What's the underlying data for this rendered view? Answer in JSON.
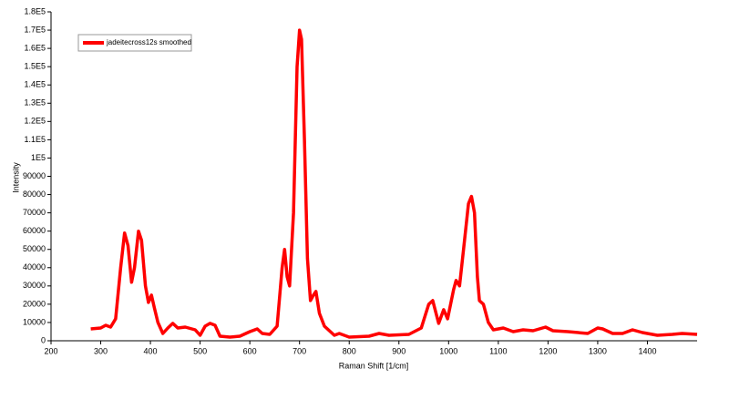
{
  "chart_data": {
    "type": "line",
    "x_label": "Raman Shift [1/cm]",
    "y_label": "Intensity",
    "x": [
      280,
      300,
      310,
      320,
      330,
      340,
      348,
      355,
      362,
      368,
      376,
      382,
      390,
      396,
      402,
      408,
      415,
      425,
      435,
      445,
      455,
      470,
      490,
      500,
      510,
      520,
      530,
      540,
      560,
      580,
      600,
      615,
      625,
      640,
      655,
      665,
      670,
      675,
      680,
      688,
      695,
      700,
      704,
      710,
      716,
      722,
      728,
      733,
      740,
      750,
      770,
      780,
      800,
      840,
      860,
      880,
      920,
      945,
      960,
      968,
      980,
      990,
      998,
      1010,
      1015,
      1022,
      1030,
      1040,
      1046,
      1052,
      1058,
      1062,
      1070,
      1080,
      1090,
      1110,
      1130,
      1150,
      1170,
      1195,
      1210,
      1240,
      1280,
      1300,
      1310,
      1330,
      1350,
      1370,
      1390,
      1420,
      1450,
      1470,
      1500
    ],
    "series": [
      {
        "name": "jadeitecross12s smoothed",
        "color": "#ff0000",
        "values": [
          6500,
          7000,
          8500,
          7500,
          12000,
          40000,
          59000,
          52000,
          32000,
          40000,
          60000,
          55000,
          30000,
          21000,
          25000,
          18000,
          10000,
          4000,
          7000,
          9500,
          7000,
          7500,
          6000,
          3000,
          8000,
          9500,
          8500,
          2500,
          2000,
          2500,
          5000,
          6500,
          4000,
          3500,
          8000,
          40000,
          50000,
          35000,
          30000,
          70000,
          150000,
          170000,
          165000,
          110000,
          45000,
          22000,
          25000,
          27000,
          15000,
          8000,
          3000,
          4000,
          2000,
          2500,
          4000,
          3000,
          3500,
          7000,
          20000,
          22000,
          9500,
          17000,
          12000,
          28000,
          33000,
          30000,
          50000,
          75000,
          79000,
          70000,
          35000,
          22000,
          20000,
          10000,
          6000,
          7000,
          5000,
          6000,
          5500,
          7500,
          5500,
          5000,
          4000,
          7000,
          6500,
          4000,
          4000,
          6000,
          4500,
          3000,
          3500,
          4000,
          3500
        ]
      }
    ],
    "xlim": [
      200,
      1500
    ],
    "xticks": [
      200,
      300,
      400,
      500,
      600,
      700,
      800,
      900,
      1000,
      1100,
      1200,
      1300,
      1400
    ],
    "ylim": [
      0,
      180000
    ],
    "yticks": [
      0,
      10000,
      20000,
      30000,
      40000,
      50000,
      60000,
      70000,
      80000,
      90000,
      {
        "value": 100000,
        "label": "1E5"
      },
      {
        "value": 110000,
        "label": "1.1E5"
      },
      {
        "value": 120000,
        "label": "1.2E5"
      },
      {
        "value": 130000,
        "label": "1.3E5"
      },
      {
        "value": 140000,
        "label": "1.4E5"
      },
      {
        "value": 150000,
        "label": "1.5E5"
      },
      {
        "value": 160000,
        "label": "1.6E5"
      },
      {
        "value": 170000,
        "label": "1.7E5"
      },
      {
        "value": 180000,
        "label": "1.8E5"
      }
    ],
    "grid": false,
    "legend": "top-left"
  }
}
